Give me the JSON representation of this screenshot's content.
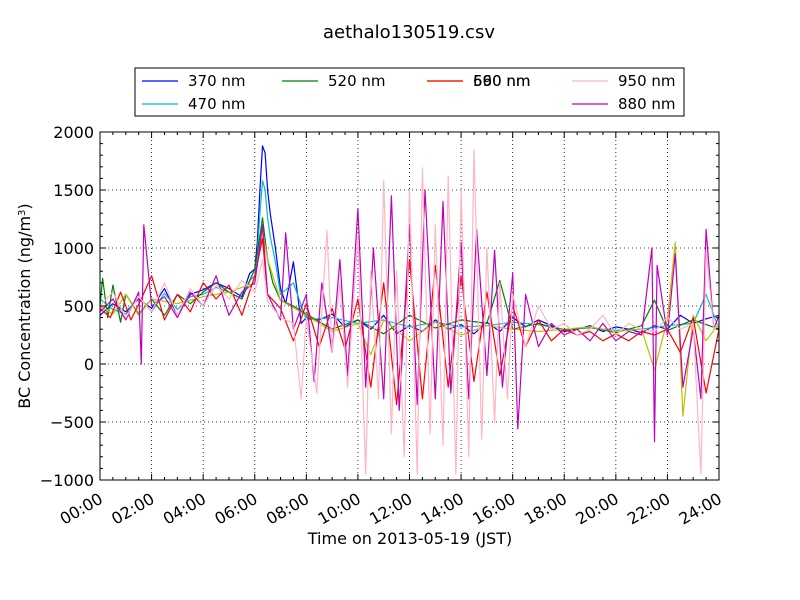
{
  "chart_data": {
    "type": "line",
    "title": "aethalo130519.csv",
    "xlabel": "Time on 2013-05-19 (JST)",
    "ylabel_main": "BC Concentration (ng/m",
    "ylabel_sup": "3",
    "ylabel_tail": ")",
    "x_unit": "hours",
    "xlim": [
      0,
      24
    ],
    "ylim": [
      -1000,
      2000
    ],
    "x_ticks": [
      {
        "v": 0,
        "label": "00:00"
      },
      {
        "v": 2,
        "label": "02:00"
      },
      {
        "v": 4,
        "label": "04:00"
      },
      {
        "v": 6,
        "label": "06:00"
      },
      {
        "v": 8,
        "label": "08:00"
      },
      {
        "v": 10,
        "label": "10:00"
      },
      {
        "v": 12,
        "label": "12:00"
      },
      {
        "v": 14,
        "label": "14:00"
      },
      {
        "v": 16,
        "label": "16:00"
      },
      {
        "v": 18,
        "label": "18:00"
      },
      {
        "v": 20,
        "label": "20:00"
      },
      {
        "v": 22,
        "label": "22:00"
      },
      {
        "v": 24,
        "label": "24:00"
      }
    ],
    "y_ticks": [
      {
        "v": -1000,
        "label": "−1000"
      },
      {
        "v": -500,
        "label": "−500"
      },
      {
        "v": 0,
        "label": "0"
      },
      {
        "v": 500,
        "label": "500"
      },
      {
        "v": 1000,
        "label": "1000"
      },
      {
        "v": 1500,
        "label": "1500"
      },
      {
        "v": 2000,
        "label": "2000"
      }
    ],
    "grid": true,
    "legend": "top",
    "series": [
      {
        "name": "370 nm",
        "color": "#0000ff",
        "legend_col": 0,
        "legend_row": 0,
        "x": [
          0.0,
          0.5,
          1.0,
          1.5,
          2.0,
          2.5,
          3.0,
          3.5,
          4.0,
          4.5,
          5.0,
          5.5,
          5.8,
          6.0,
          6.1,
          6.2,
          6.3,
          6.4,
          6.5,
          6.6,
          6.8,
          7.0,
          7.2,
          7.5,
          7.8,
          8.0,
          8.5,
          9.0,
          9.5,
          10.0,
          10.5,
          11.0,
          11.5,
          12.0,
          12.5,
          13.0,
          13.5,
          14.0,
          14.5,
          15.0,
          15.5,
          16.0,
          16.5,
          17.0,
          17.5,
          18.0,
          18.5,
          19.0,
          19.5,
          20.0,
          20.5,
          21.0,
          21.5,
          22.0,
          22.5,
          23.0,
          23.5,
          24.0
        ],
        "values": [
          420,
          520,
          450,
          560,
          480,
          650,
          420,
          600,
          640,
          700,
          650,
          580,
          780,
          820,
          1050,
          1500,
          1880,
          1820,
          1500,
          1300,
          1000,
          650,
          520,
          880,
          350,
          400,
          380,
          430,
          320,
          380,
          300,
          420,
          260,
          330,
          280,
          380,
          300,
          340,
          260,
          360,
          280,
          400,
          320,
          380,
          330,
          280,
          300,
          330,
          280,
          320,
          300,
          270,
          330,
          300,
          420,
          350,
          390,
          420
        ]
      },
      {
        "name": "470 nm",
        "color": "#00bfbf",
        "legend_col": 0,
        "legend_row": 1,
        "x": [
          0.0,
          0.5,
          1.0,
          1.5,
          2.0,
          2.5,
          3.0,
          3.5,
          4.0,
          4.5,
          5.0,
          5.5,
          5.8,
          6.0,
          6.1,
          6.2,
          6.3,
          6.4,
          6.5,
          6.6,
          6.8,
          7.0,
          7.5,
          8.0,
          9.0,
          10.0,
          11.0,
          12.0,
          13.0,
          14.0,
          15.0,
          16.0,
          17.0,
          18.0,
          19.0,
          20.0,
          21.0,
          22.0,
          23.0,
          23.5,
          24.0
        ],
        "values": [
          560,
          470,
          430,
          580,
          450,
          610,
          470,
          580,
          600,
          660,
          620,
          560,
          720,
          760,
          950,
          1300,
          1580,
          1500,
          1260,
          1100,
          880,
          600,
          700,
          380,
          400,
          350,
          380,
          320,
          360,
          320,
          330,
          360,
          340,
          300,
          310,
          290,
          300,
          330,
          350,
          600,
          300
        ]
      },
      {
        "name": "520 nm",
        "color": "#008000",
        "legend_col": 1,
        "legend_row": 0,
        "x": [
          0.0,
          0.1,
          0.3,
          0.5,
          0.8,
          1.0,
          1.5,
          2.0,
          2.5,
          3.0,
          3.5,
          4.0,
          4.5,
          5.0,
          5.5,
          6.0,
          6.2,
          6.3,
          6.5,
          6.7,
          7.0,
          7.5,
          8.0,
          9.0,
          10.0,
          11.0,
          12.0,
          13.0,
          14.0,
          15.0,
          15.5,
          16.0,
          17.0,
          18.0,
          19.0,
          20.0,
          21.0,
          21.5,
          22.0,
          23.0,
          24.0
        ],
        "values": [
          500,
          740,
          400,
          680,
          360,
          600,
          430,
          560,
          420,
          600,
          520,
          620,
          700,
          620,
          560,
          820,
          1100,
          1260,
          900,
          700,
          550,
          500,
          430,
          300,
          380,
          260,
          420,
          310,
          380,
          350,
          720,
          300,
          350,
          290,
          320,
          270,
          330,
          550,
          290,
          380,
          300
        ]
      },
      {
        "name": "590 nm",
        "color": "#bfbf00",
        "legend_col": 2,
        "legend_row": 0,
        "x": [
          0.0,
          0.5,
          1.0,
          1.5,
          2.0,
          3.0,
          4.0,
          5.0,
          6.0,
          6.3,
          6.5,
          7.0,
          8.0,
          9.0,
          10.0,
          10.5,
          11.0,
          12.0,
          13.0,
          14.0,
          15.0,
          16.0,
          17.0,
          18.0,
          19.0,
          20.0,
          21.0,
          21.5,
          22.0,
          22.3,
          22.6,
          23.0,
          23.5,
          24.0
        ],
        "values": [
          500,
          430,
          600,
          420,
          560,
          520,
          580,
          620,
          700,
          1150,
          900,
          550,
          420,
          280,
          350,
          80,
          380,
          200,
          360,
          250,
          330,
          300,
          280,
          300,
          320,
          280,
          300,
          -50,
          380,
          1050,
          -450,
          420,
          200,
          350
        ]
      },
      {
        "name": "660 nm",
        "color": "#ff0000",
        "legend_col": 2,
        "legend_row": 0,
        "x": [
          0.0,
          0.4,
          0.8,
          1.2,
          1.6,
          2.0,
          2.5,
          3.0,
          3.5,
          4.0,
          4.5,
          5.0,
          5.5,
          6.0,
          6.3,
          6.5,
          7.0,
          7.5,
          8.0,
          8.5,
          9.0,
          9.5,
          10.0,
          10.5,
          11.0,
          11.5,
          12.0,
          12.5,
          13.0,
          13.5,
          14.0,
          14.5,
          15.0,
          15.5,
          16.0,
          16.5,
          17.0,
          17.5,
          18.0,
          18.5,
          19.0,
          19.5,
          20.0,
          20.5,
          21.0,
          21.5,
          22.0,
          22.5,
          23.0,
          23.5,
          24.0
        ],
        "values": [
          480,
          400,
          620,
          380,
          560,
          760,
          380,
          600,
          450,
          700,
          560,
          680,
          420,
          760,
          1080,
          600,
          480,
          200,
          520,
          150,
          480,
          130,
          560,
          -200,
          700,
          -350,
          900,
          -300,
          850,
          -200,
          760,
          -150,
          620,
          -100,
          500,
          150,
          380,
          200,
          300,
          250,
          280,
          200,
          260,
          200,
          280,
          250,
          300,
          100,
          400,
          -250,
          300
        ]
      },
      {
        "name": "880 nm",
        "color": "#bf00bf",
        "legend_col": 3,
        "legend_row": 1,
        "x": [
          0.0,
          0.5,
          1.0,
          1.5,
          1.6,
          1.7,
          2.0,
          2.5,
          3.0,
          3.5,
          4.0,
          4.5,
          5.0,
          5.5,
          6.0,
          6.3,
          6.5,
          7.0,
          7.2,
          7.5,
          8.0,
          8.3,
          8.6,
          9.0,
          9.3,
          9.6,
          10.0,
          10.3,
          10.6,
          11.0,
          11.3,
          11.6,
          12.0,
          12.3,
          12.6,
          13.0,
          13.3,
          13.6,
          14.0,
          14.3,
          14.6,
          15.0,
          15.3,
          15.6,
          16.0,
          16.2,
          16.5,
          17.0,
          17.5,
          18.0,
          18.5,
          19.0,
          19.5,
          20.0,
          20.5,
          21.0,
          21.4,
          21.5,
          21.6,
          22.0,
          22.3,
          22.6,
          23.0,
          23.3,
          23.5,
          23.8,
          24.0
        ],
        "values": [
          450,
          560,
          380,
          620,
          0,
          1200,
          500,
          580,
          400,
          620,
          500,
          760,
          420,
          620,
          700,
          1200,
          600,
          380,
          1130,
          300,
          600,
          -150,
          700,
          100,
          900,
          -100,
          1340,
          -200,
          1000,
          -300,
          1450,
          -400,
          1200,
          -350,
          1500,
          -300,
          1400,
          -250,
          1050,
          -300,
          1160,
          -100,
          980,
          -200,
          780,
          -560,
          600,
          150,
          350,
          250,
          300,
          200,
          350,
          200,
          280,
          250,
          1000,
          -670,
          850,
          250,
          950,
          -200,
          300,
          -300,
          1160,
          300,
          420
        ]
      },
      {
        "name": "950 nm",
        "color": "#ffb6c1",
        "legend_col": 3,
        "legend_row": 0,
        "x": [
          0.0,
          0.5,
          1.0,
          1.5,
          2.0,
          2.5,
          3.0,
          3.5,
          4.0,
          4.5,
          5.0,
          5.5,
          6.0,
          6.3,
          6.5,
          7.0,
          7.5,
          7.8,
          8.0,
          8.4,
          8.8,
          9.0,
          9.3,
          9.6,
          10.0,
          10.3,
          10.5,
          10.8,
          11.0,
          11.3,
          11.5,
          11.8,
          12.0,
          12.3,
          12.5,
          12.8,
          13.0,
          13.3,
          13.5,
          13.8,
          14.0,
          14.3,
          14.5,
          14.8,
          15.0,
          15.3,
          15.5,
          15.8,
          16.0,
          16.5,
          17.0,
          17.5,
          18.0,
          18.5,
          19.0,
          19.5,
          20.0,
          20.5,
          21.0,
          21.5,
          22.0,
          22.5,
          23.0,
          23.3,
          23.5,
          23.8,
          24.0
        ],
        "values": [
          500,
          620,
          400,
          580,
          450,
          700,
          420,
          650,
          500,
          680,
          560,
          720,
          620,
          900,
          540,
          400,
          350,
          -300,
          400,
          -250,
          1150,
          100,
          700,
          -200,
          1100,
          -950,
          800,
          -300,
          1580,
          -600,
          800,
          -800,
          1500,
          -950,
          1690,
          -600,
          1200,
          -700,
          1620,
          -950,
          1500,
          -800,
          1850,
          -650,
          1000,
          -500,
          700,
          -300,
          600,
          150,
          500,
          300,
          350,
          250,
          300,
          420,
          250,
          350,
          300,
          280,
          400,
          300,
          350,
          -950,
          980,
          300,
          350
        ]
      }
    ]
  }
}
